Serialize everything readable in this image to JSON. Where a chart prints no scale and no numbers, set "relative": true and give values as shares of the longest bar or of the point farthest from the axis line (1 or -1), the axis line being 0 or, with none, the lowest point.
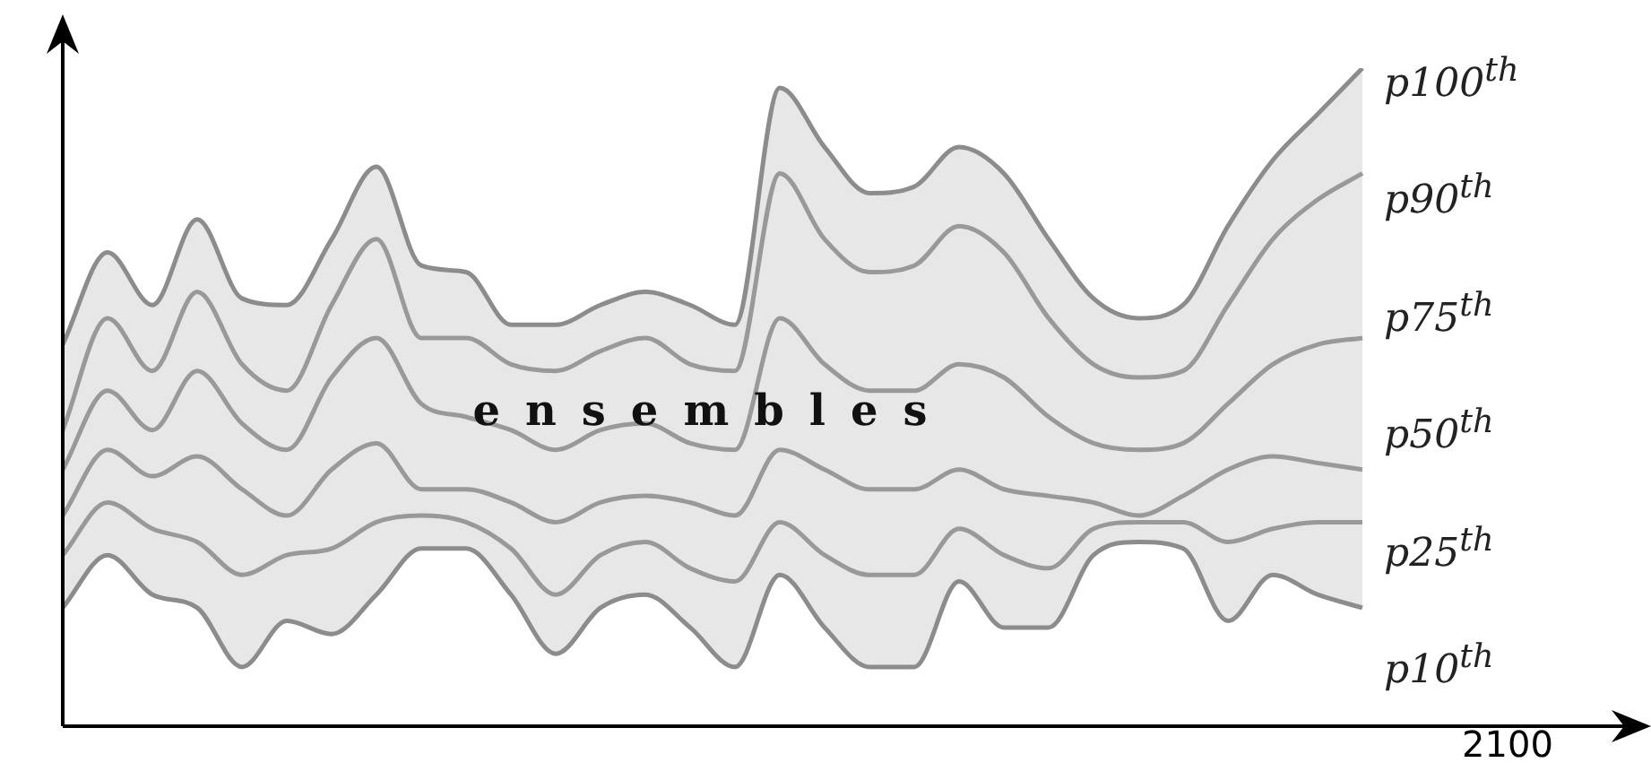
{
  "chart_data": {
    "type": "line",
    "relative": true,
    "xlabel": "2100",
    "annotations": [
      "ensembles"
    ],
    "categories": [
      null,
      null,
      null,
      null,
      null,
      null,
      null,
      null,
      null,
      null,
      null,
      null,
      null,
      null,
      null,
      null,
      null,
      null,
      null,
      null,
      null,
      null,
      null,
      null,
      null,
      null,
      null,
      null,
      null,
      null
    ],
    "series": [
      {
        "name": "p100$^{th}$",
        "color": "#8c8c8c",
        "values": [
          0.58,
          0.72,
          0.64,
          0.77,
          0.65,
          0.64,
          0.74,
          0.85,
          0.7,
          0.69,
          0.61,
          0.61,
          0.64,
          0.66,
          0.64,
          0.61,
          0.97,
          0.88,
          0.81,
          0.82,
          0.88,
          0.84,
          0.74,
          0.65,
          0.62,
          0.64,
          0.76,
          0.86,
          0.93,
          1
        ]
      },
      {
        "name": "p90$^{th}$",
        "color": "#999999",
        "values": [
          0.45,
          0.62,
          0.54,
          0.66,
          0.55,
          0.51,
          0.64,
          0.74,
          0.59,
          0.59,
          0.55,
          0.54,
          0.57,
          0.59,
          0.55,
          0.54,
          0.84,
          0.74,
          0.69,
          0.7,
          0.76,
          0.72,
          0.62,
          0.55,
          0.53,
          0.54,
          0.64,
          0.74,
          0.8,
          0.84
        ]
      },
      {
        "name": "p75$^{th}$",
        "color": "#999999",
        "values": [
          0.39,
          0.51,
          0.45,
          0.54,
          0.46,
          0.42,
          0.53,
          0.59,
          0.49,
          0.47,
          0.45,
          0.42,
          0.45,
          0.46,
          0.43,
          0.42,
          0.62,
          0.55,
          0.51,
          0.51,
          0.55,
          0.53,
          0.47,
          0.43,
          0.42,
          0.43,
          0.49,
          0.55,
          0.58,
          0.59
        ]
      },
      {
        "name": "p50$^{th}$",
        "color": "#999999",
        "values": [
          0.32,
          0.42,
          0.38,
          0.41,
          0.36,
          0.32,
          0.39,
          0.43,
          0.36,
          0.36,
          0.34,
          0.31,
          0.34,
          0.35,
          0.34,
          0.32,
          0.42,
          0.39,
          0.36,
          0.36,
          0.39,
          0.36,
          0.35,
          0.34,
          0.32,
          0.35,
          0.39,
          0.41,
          0.4,
          0.39
        ],
        "lower": [
          0.18,
          0.26,
          0.2,
          0.18,
          0.09,
          0.16,
          0.14,
          0.2,
          0.27,
          0.27,
          0.2,
          0.11,
          0.18,
          0.2,
          0.15,
          0.09,
          0.23,
          0.15,
          0.09,
          0.09,
          0.22,
          0.15,
          0.15,
          0.26,
          0.28,
          0.27,
          0.16,
          0.23,
          0.2,
          0.18
        ],
        "upper": [
          0.58,
          0.72,
          0.64,
          0.77,
          0.65,
          0.64,
          0.74,
          0.85,
          0.7,
          0.69,
          0.61,
          0.61,
          0.64,
          0.66,
          0.64,
          0.61,
          0.97,
          0.88,
          0.81,
          0.82,
          0.88,
          0.84,
          0.74,
          0.65,
          0.62,
          0.64,
          0.76,
          0.86,
          0.93,
          1
        ]
      },
      {
        "name": "p25$^{th}$",
        "color": "#999999",
        "values": [
          0.26,
          0.34,
          0.3,
          0.28,
          0.23,
          0.26,
          0.27,
          0.31,
          0.32,
          0.31,
          0.27,
          0.2,
          0.26,
          0.28,
          0.24,
          0.22,
          0.31,
          0.26,
          0.23,
          0.23,
          0.3,
          0.26,
          0.24,
          0.3,
          0.31,
          0.31,
          0.28,
          0.3,
          0.31,
          0.31
        ]
      },
      {
        "name": "p10$^{th}$",
        "color": "#8c8c8c",
        "values": [
          0.18,
          0.26,
          0.2,
          0.18,
          0.09,
          0.16,
          0.14,
          0.2,
          0.27,
          0.27,
          0.2,
          0.11,
          0.18,
          0.2,
          0.15,
          0.09,
          0.23,
          0.15,
          0.09,
          0.09,
          0.22,
          0.15,
          0.15,
          0.26,
          0.28,
          0.27,
          0.16,
          0.23,
          0.2,
          0.18
        ]
      }
    ]
  }
}
